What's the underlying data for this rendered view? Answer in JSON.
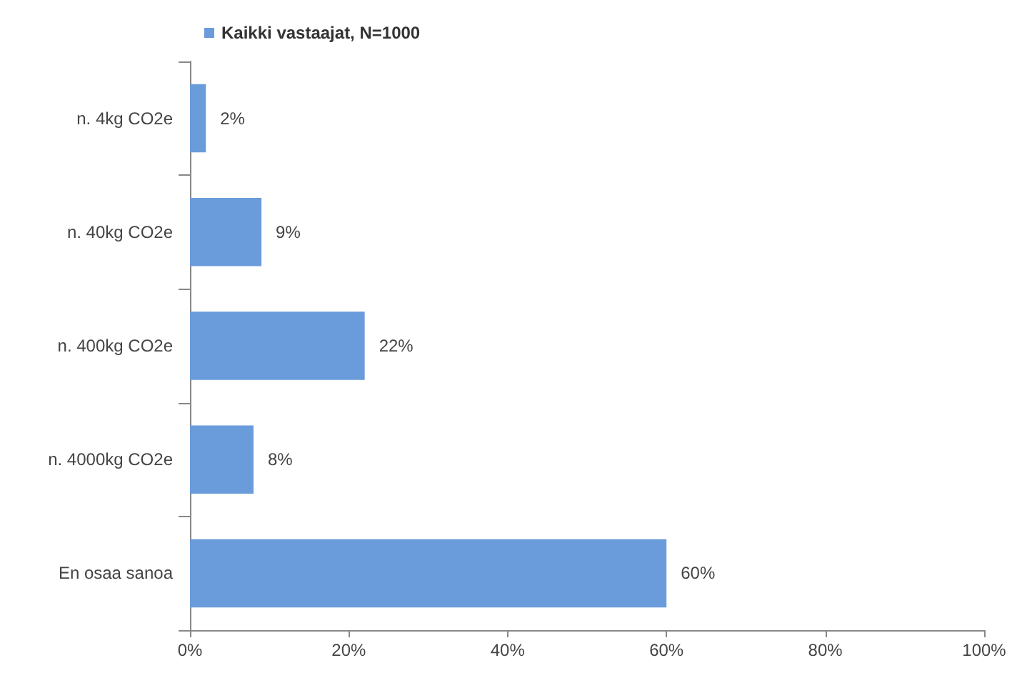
{
  "chart_data": {
    "type": "bar",
    "orientation": "horizontal",
    "categories": [
      "n. 4kg CO2e",
      "n. 40kg CO2e",
      "n. 400kg CO2e",
      "n. 4000kg CO2e",
      "En osaa sanoa"
    ],
    "series": [
      {
        "name": "Kaikki vastaajat, N=1000",
        "color": "#6a9bdb",
        "values": [
          2,
          9,
          22,
          8,
          60
        ],
        "value_labels": [
          "2%",
          "9%",
          "22%",
          "8%",
          "60%"
        ]
      }
    ],
    "xlim": [
      0,
      100
    ],
    "xticks": [
      {
        "value": 0,
        "label": "0%"
      },
      {
        "value": 20,
        "label": "20%"
      },
      {
        "value": 40,
        "label": "40%"
      },
      {
        "value": 60,
        "label": "60%"
      },
      {
        "value": 80,
        "label": "80%"
      },
      {
        "value": 100,
        "label": "100%"
      }
    ],
    "grid": false,
    "legend": "top"
  }
}
